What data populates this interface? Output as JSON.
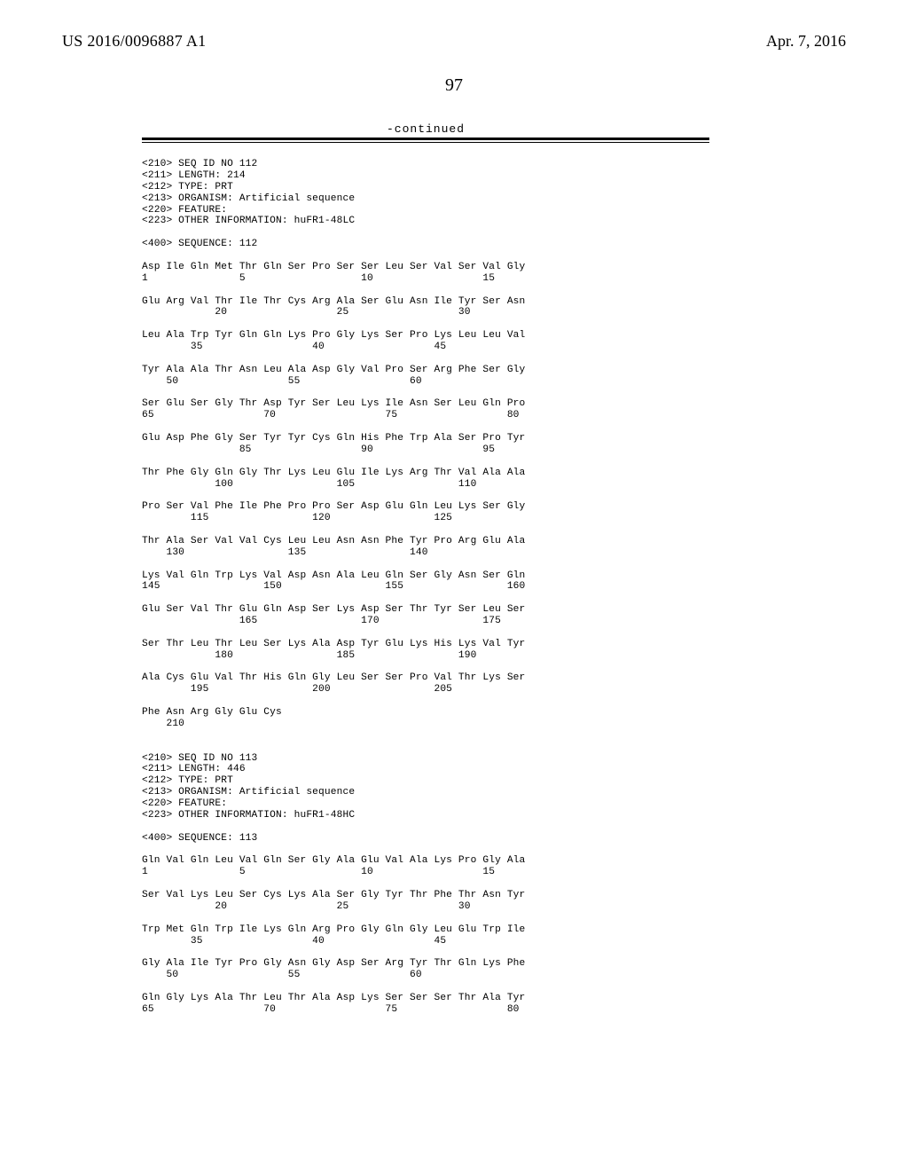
{
  "header": {
    "publication_number": "US 2016/0096887 A1",
    "pub_date": "Apr. 7, 2016"
  },
  "page_number": "97",
  "continued_label": "-continued",
  "seq_meta_112": {
    "l1": "<210> SEQ ID NO 112",
    "l2": "<211> LENGTH: 214",
    "l3": "<212> TYPE: PRT",
    "l4": "<213> ORGANISM: Artificial sequence",
    "l5": "<220> FEATURE:",
    "l6": "<223> OTHER INFORMATION: huFR1-48LC",
    "l7": "<400> SEQUENCE: 112"
  },
  "seq112": {
    "r1a": "Asp Ile Gln Met Thr Gln Ser Pro Ser Ser Leu Ser Val Ser Val Gly",
    "r1b": "1               5                   10                  15",
    "r2a": "Glu Arg Val Thr Ile Thr Cys Arg Ala Ser Glu Asn Ile Tyr Ser Asn",
    "r2b": "            20                  25                  30",
    "r3a": "Leu Ala Trp Tyr Gln Gln Lys Pro Gly Lys Ser Pro Lys Leu Leu Val",
    "r3b": "        35                  40                  45",
    "r4a": "Tyr Ala Ala Thr Asn Leu Ala Asp Gly Val Pro Ser Arg Phe Ser Gly",
    "r4b": "    50                  55                  60",
    "r5a": "Ser Glu Ser Gly Thr Asp Tyr Ser Leu Lys Ile Asn Ser Leu Gln Pro",
    "r5b": "65                  70                  75                  80",
    "r6a": "Glu Asp Phe Gly Ser Tyr Tyr Cys Gln His Phe Trp Ala Ser Pro Tyr",
    "r6b": "                85                  90                  95",
    "r7a": "Thr Phe Gly Gln Gly Thr Lys Leu Glu Ile Lys Arg Thr Val Ala Ala",
    "r7b": "            100                 105                 110",
    "r8a": "Pro Ser Val Phe Ile Phe Pro Pro Ser Asp Glu Gln Leu Lys Ser Gly",
    "r8b": "        115                 120                 125",
    "r9a": "Thr Ala Ser Val Val Cys Leu Leu Asn Asn Phe Tyr Pro Arg Glu Ala",
    "r9b": "    130                 135                 140",
    "r10a": "Lys Val Gln Trp Lys Val Asp Asn Ala Leu Gln Ser Gly Asn Ser Gln",
    "r10b": "145                 150                 155                 160",
    "r11a": "Glu Ser Val Thr Glu Gln Asp Ser Lys Asp Ser Thr Tyr Ser Leu Ser",
    "r11b": "                165                 170                 175",
    "r12a": "Ser Thr Leu Thr Leu Ser Lys Ala Asp Tyr Glu Lys His Lys Val Tyr",
    "r12b": "            180                 185                 190",
    "r13a": "Ala Cys Glu Val Thr His Gln Gly Leu Ser Ser Pro Val Thr Lys Ser",
    "r13b": "        195                 200                 205",
    "r14a": "Phe Asn Arg Gly Glu Cys",
    "r14b": "    210"
  },
  "seq_meta_113": {
    "l1": "<210> SEQ ID NO 113",
    "l2": "<211> LENGTH: 446",
    "l3": "<212> TYPE: PRT",
    "l4": "<213> ORGANISM: Artificial sequence",
    "l5": "<220> FEATURE:",
    "l6": "<223> OTHER INFORMATION: huFR1-48HC",
    "l7": "<400> SEQUENCE: 113"
  },
  "seq113": {
    "r1a": "Gln Val Gln Leu Val Gln Ser Gly Ala Glu Val Ala Lys Pro Gly Ala",
    "r1b": "1               5                   10                  15",
    "r2a": "Ser Val Lys Leu Ser Cys Lys Ala Ser Gly Tyr Thr Phe Thr Asn Tyr",
    "r2b": "            20                  25                  30",
    "r3a": "Trp Met Gln Trp Ile Lys Gln Arg Pro Gly Gln Gly Leu Glu Trp Ile",
    "r3b": "        35                  40                  45",
    "r4a": "Gly Ala Ile Tyr Pro Gly Asn Gly Asp Ser Arg Tyr Thr Gln Lys Phe",
    "r4b": "    50                  55                  60",
    "r5a": "Gln Gly Lys Ala Thr Leu Thr Ala Asp Lys Ser Ser Ser Thr Ala Tyr",
    "r5b": "65                  70                  75                  80"
  }
}
